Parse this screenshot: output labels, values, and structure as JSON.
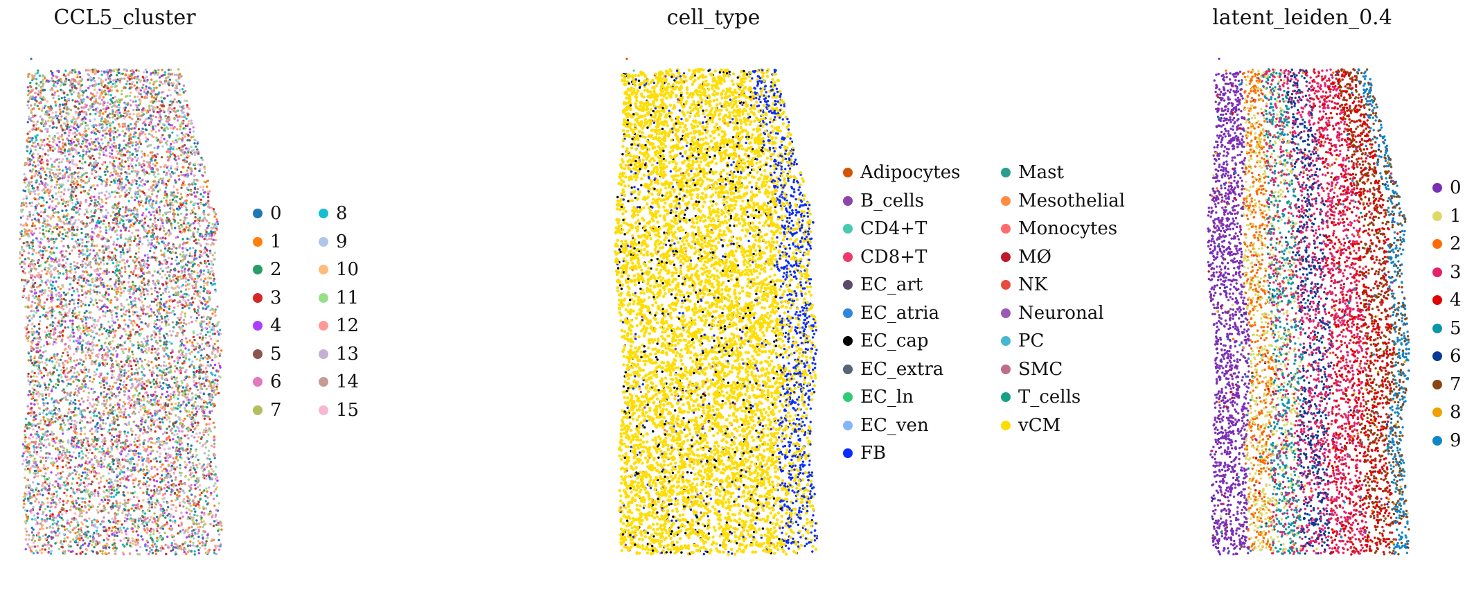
{
  "chart_data": [
    {
      "type": "scatter",
      "title": "CCL5_cluster",
      "categories": [
        "0",
        "1",
        "2",
        "3",
        "4",
        "5",
        "6",
        "7",
        "8",
        "9",
        "10",
        "11",
        "12",
        "13",
        "14",
        "15"
      ],
      "colors": [
        "#1f77b4",
        "#ff7f0e",
        "#279e68",
        "#d62728",
        "#aa40fc",
        "#8c564b",
        "#e377c2",
        "#b5bd61",
        "#17becf",
        "#aec7e8",
        "#ffbb78",
        "#98df8a",
        "#ff9896",
        "#c5b0d5",
        "#c49c94",
        "#f7b6d2"
      ],
      "legend_columns": 2,
      "legend_placement": "right",
      "axes": "off",
      "pattern": "mixed"
    },
    {
      "type": "scatter",
      "title": "cell_type",
      "categories": [
        "Adipocytes",
        "B_cells",
        "CD4+T",
        "CD8+T",
        "EC_art",
        "EC_atria",
        "EC_cap",
        "EC_extra",
        "EC_ln",
        "EC_ven",
        "FB",
        "Mast",
        "Mesothelial",
        "Monocytes",
        "MØ",
        "NK",
        "Neuronal",
        "PC",
        "SMC",
        "T_cells",
        "vCM"
      ],
      "colors": [
        "#d35400",
        "#8e44ad",
        "#48c9b0",
        "#f0386b",
        "#5b4a6b",
        "#2e86de",
        "#000000",
        "#566573",
        "#2ecc71",
        "#85b4ff",
        "#0a2cff",
        "#2a9d8f",
        "#ff8c42",
        "#ff6b6b",
        "#c0182a",
        "#e74c3c",
        "#9b59b6",
        "#45b7d1",
        "#c06c84",
        "#16a085",
        "#ffdd00"
      ],
      "legend_columns": 2,
      "legend_placement": "right",
      "axes": "off",
      "pattern": "celltype"
    },
    {
      "type": "scatter",
      "title": "latent_leiden_0.4",
      "categories": [
        "0",
        "1",
        "2",
        "3",
        "4",
        "5",
        "6",
        "7",
        "8",
        "9"
      ],
      "colors": [
        "#7b2fb5",
        "#ddd868",
        "#ff6a00",
        "#e4226a",
        "#e00000",
        "#0b96a8",
        "#0b3a96",
        "#8b4513",
        "#f0a000",
        "#1184c7"
      ],
      "legend_columns": 1,
      "legend_placement": "right",
      "axes": "off",
      "pattern": "bands"
    }
  ]
}
